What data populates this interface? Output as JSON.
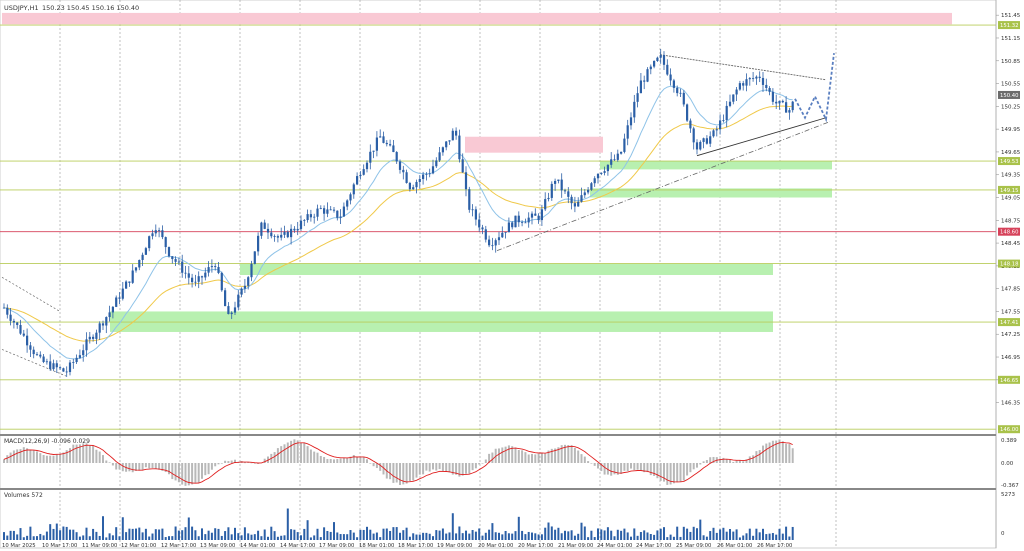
{
  "header": {
    "symbol": "USDJPY,H1",
    "ohlc": "150.23 150.45 150.16 150.40"
  },
  "colors": {
    "bull": "#2b5fa6",
    "bear": "#2b5fa6",
    "ema_fast": "#8fc3e8",
    "ema_slow": "#f0c94a",
    "level_line": "#b8cc5a",
    "red_level": "#d6425a",
    "demand_zone": "#b8f0b0",
    "supply_zone": "#f9c9d4",
    "macd_hist": "#b8b8b8",
    "macd_signal": "#e02020",
    "volume": "#2b5fa6",
    "trend_line": "#666666",
    "projection": "#5a7fc0"
  },
  "price_axis": {
    "ticks": [
      "151.45",
      "151.15",
      "150.85",
      "150.55",
      "150.25",
      "149.95",
      "149.65",
      "149.35",
      "149.05",
      "148.75",
      "148.45",
      "148.15",
      "147.85",
      "147.55",
      "147.25",
      "146.95",
      "146.65",
      "146.35"
    ],
    "current_price": "150.40",
    "levels": [
      {
        "label": "151.32",
        "kind": "green"
      },
      {
        "label": "149.53",
        "kind": "green"
      },
      {
        "label": "149.15",
        "kind": "green"
      },
      {
        "label": "148.60",
        "kind": "red"
      },
      {
        "label": "148.18",
        "kind": "green"
      },
      {
        "label": "147.41",
        "kind": "green"
      },
      {
        "label": "146.65",
        "kind": "green"
      },
      {
        "label": "146.00",
        "kind": "green"
      }
    ]
  },
  "time_axis": [
    "10 Mar 2025",
    "10 Mar 17:00",
    "11 Mar 09:00",
    "12 Mar 01:00",
    "12 Mar 17:00",
    "13 Mar 09:00",
    "14 Mar 01:00",
    "14 Mar 17:00",
    "17 Mar 09:00",
    "18 Mar 01:00",
    "18 Mar 17:00",
    "19 Mar 09:00",
    "20 Mar 01:00",
    "20 Mar 17:00",
    "21 Mar 09:00",
    "24 Mar 01:00",
    "24 Mar 17:00",
    "25 Mar 09:00",
    "26 Mar 01:00",
    "26 Mar 17:00"
  ],
  "macd": {
    "label": "MACD(12,26,9) -0.096 0.029",
    "ticks": [
      "0.389",
      "0.00",
      "-0.367"
    ]
  },
  "volume": {
    "label": "Volumes 572",
    "ticks": [
      "5273",
      "0"
    ]
  }
}
